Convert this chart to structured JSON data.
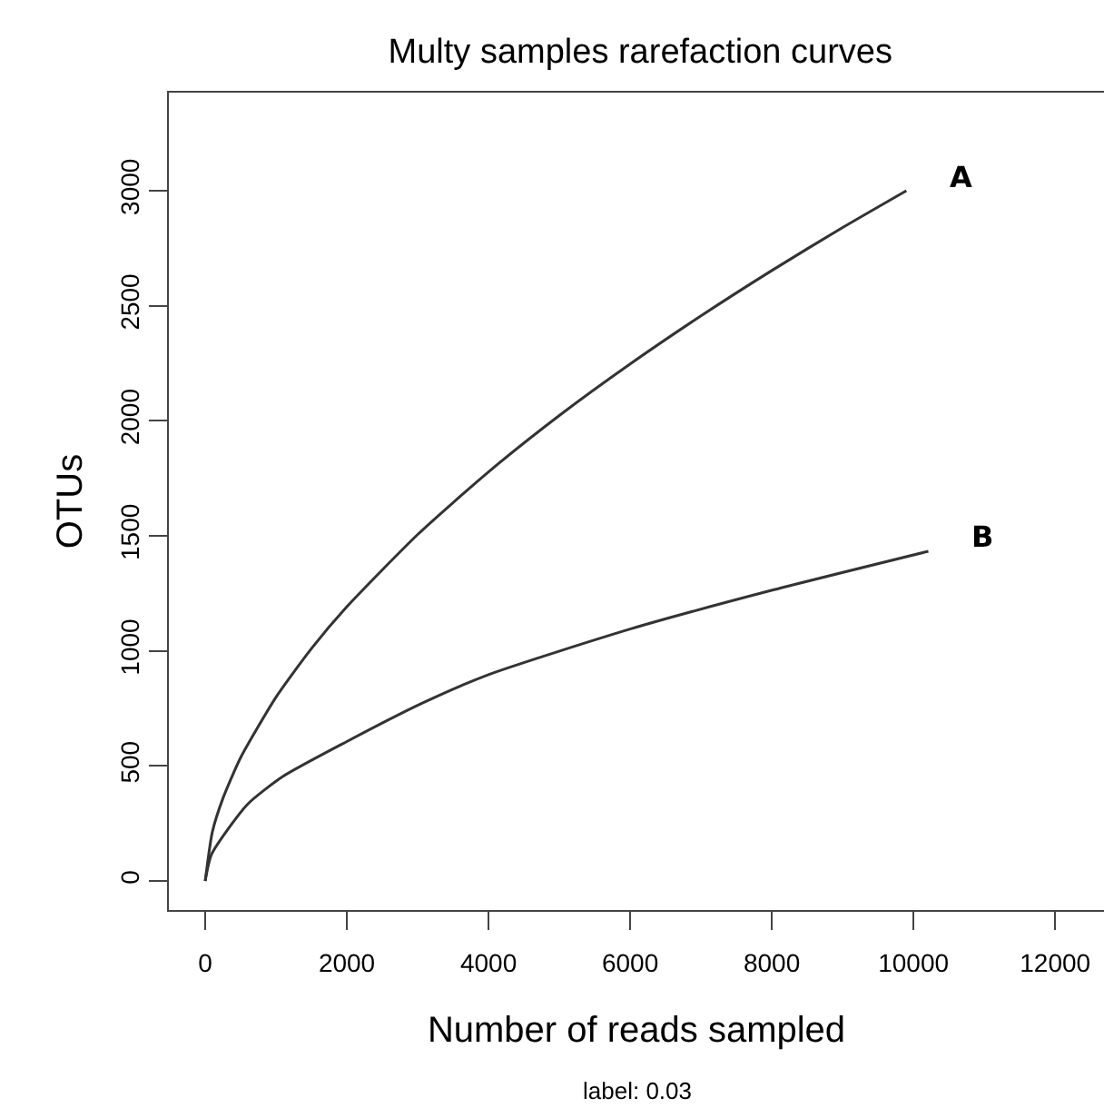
{
  "chart_data": {
    "type": "line",
    "title": "Multy samples rarefaction curves",
    "xlabel": "Number of reads sampled",
    "ylabel": "OTUs",
    "annotations": [
      "label: 0.03"
    ],
    "xlim": [
      -513,
      12690
    ],
    "ylim": [
      -126,
      3426
    ],
    "xticks": [
      0,
      2000,
      4000,
      6000,
      8000,
      10000,
      12000
    ],
    "yticks": [
      0,
      500,
      1000,
      1500,
      2000,
      2500,
      3000
    ],
    "grid": false,
    "legend": false,
    "marker": "none",
    "line_style": "solid",
    "series": [
      {
        "name": "A",
        "color": "#333333",
        "x": [
          0,
          100,
          250,
          500,
          1000,
          1500,
          2000,
          3000,
          4000,
          5000,
          6000,
          7000,
          8000,
          9000,
          9900
        ],
        "values": [
          0,
          212,
          359,
          536,
          799,
          1010,
          1192,
          1506,
          1778,
          2023,
          2247,
          2456,
          2653,
          2840,
          3000
        ]
      },
      {
        "name": "B",
        "color": "#333333",
        "x": [
          0,
          90,
          590,
          1090,
          2000,
          3080,
          4000,
          6010,
          8020,
          10210
        ],
        "values": [
          0,
          116,
          331,
          453,
          606,
          775,
          897,
          1096,
          1265,
          1433
        ]
      }
    ]
  }
}
